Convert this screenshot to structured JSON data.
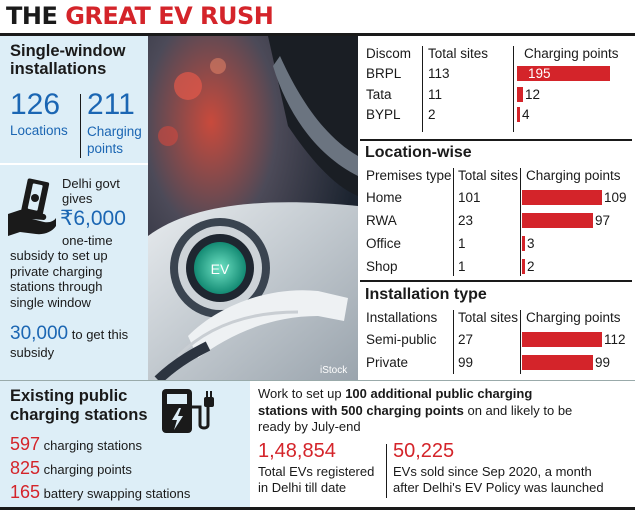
{
  "headline": {
    "part1": "THE ",
    "part2": "GREAT EV RUSH"
  },
  "single_window": {
    "title_line1": "Single-window",
    "title_line2": "installations",
    "locations_value": "126",
    "locations_label": "Locations",
    "points_value": "211",
    "points_label_line1": "Charging",
    "points_label_line2": "points"
  },
  "subsidy": {
    "line1": "Delhi govt",
    "line2": "gives",
    "amount": "₹6,000",
    "line3": "one-time",
    "line4": "subsidy to set up",
    "line5": "private charging",
    "line6": "stations through",
    "line7": "single window",
    "count": "30,000",
    "count_suffix": " to get this",
    "last_line": "subsidy"
  },
  "photo": {
    "credit": "iStock",
    "ev_label": "EV"
  },
  "discom": {
    "headers": [
      "Discom",
      "Total sites",
      "Charging points"
    ],
    "rows": [
      {
        "name": "BRPL",
        "sites": "113",
        "points": "195",
        "points_num": 195
      },
      {
        "name": "Tata",
        "sites": "11",
        "points": "12",
        "points_num": 12
      },
      {
        "name": "BYPL",
        "sites": "2",
        "points": "4",
        "points_num": 4
      }
    ]
  },
  "location_wise": {
    "title": "Location-wise",
    "headers": [
      "Premises type",
      "Total sites",
      "Charging points"
    ],
    "rows": [
      {
        "name": "Home",
        "sites": "101",
        "points": "109",
        "points_num": 109
      },
      {
        "name": "RWA",
        "sites": "23",
        "points": "97",
        "points_num": 97
      },
      {
        "name": "Office",
        "sites": "1",
        "points": "3",
        "points_num": 3
      },
      {
        "name": "Shop",
        "sites": "1",
        "points": "2",
        "points_num": 2
      }
    ]
  },
  "installation_type": {
    "title": "Installation type",
    "headers": [
      "Installations",
      "Total sites",
      "Charging points"
    ],
    "rows": [
      {
        "name": "Semi-public",
        "sites": "27",
        "points": "112",
        "points_num": 112
      },
      {
        "name": "Private",
        "sites": "99",
        "points": "99",
        "points_num": 99
      }
    ]
  },
  "public_stations": {
    "title_line1": "Existing public",
    "title_line2": "charging stations",
    "stations_value": "597",
    "stations_label": " charging stations",
    "points_value": "825",
    "points_label": " charging points",
    "swap_value": "165",
    "swap_label": " battery swapping stations"
  },
  "work": {
    "prefix": "Work to set up ",
    "bold1": "100 additional public charging",
    "bold2": "stations with 500 charging points",
    "suffix1": " on and likely to be",
    "line3": "ready by July-end"
  },
  "ev_registered": {
    "value": "1,48,854",
    "line1": "Total EVs registered",
    "line2": "in Delhi till date"
  },
  "ev_sold": {
    "value": "50,225",
    "line1": "EVs sold since Sep 2020, a month",
    "line2": "after Delhi's EV Policy was launched"
  },
  "colors": {
    "accent": "#d4242a",
    "blue": "#1b66b3",
    "panel": "#ddeef7"
  },
  "icons": [
    "money-hand-icon",
    "charging-station-icon",
    "ev-charger-photo"
  ]
}
